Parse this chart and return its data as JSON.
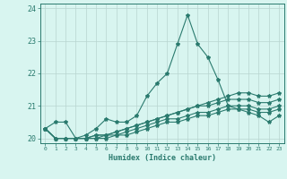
{
  "title": "",
  "xlabel": "Humidex (Indice chaleur)",
  "x": [
    0,
    1,
    2,
    3,
    4,
    5,
    6,
    7,
    8,
    9,
    10,
    11,
    12,
    13,
    14,
    15,
    16,
    17,
    18,
    19,
    20,
    21,
    22,
    23
  ],
  "lines": [
    [
      20.3,
      20.5,
      20.5,
      20.0,
      20.1,
      20.3,
      20.6,
      20.5,
      20.5,
      20.7,
      21.3,
      21.7,
      22.0,
      22.9,
      23.8,
      22.9,
      22.5,
      21.8,
      21.0,
      20.9,
      20.8,
      20.7,
      20.5,
      20.7
    ],
    [
      20.3,
      20.0,
      20.0,
      20.0,
      20.0,
      20.1,
      20.1,
      20.2,
      20.3,
      20.4,
      20.5,
      20.6,
      20.7,
      20.8,
      20.9,
      21.0,
      21.1,
      21.2,
      21.3,
      21.4,
      21.4,
      21.3,
      21.3,
      21.4
    ],
    [
      20.3,
      20.0,
      20.0,
      20.0,
      20.0,
      20.1,
      20.1,
      20.2,
      20.3,
      20.4,
      20.5,
      20.6,
      20.7,
      20.8,
      20.9,
      21.0,
      21.0,
      21.1,
      21.2,
      21.2,
      21.2,
      21.1,
      21.1,
      21.2
    ],
    [
      20.3,
      20.0,
      20.0,
      20.0,
      20.0,
      20.0,
      20.1,
      20.1,
      20.2,
      20.3,
      20.4,
      20.5,
      20.6,
      20.6,
      20.7,
      20.8,
      20.8,
      20.9,
      21.0,
      21.0,
      21.0,
      20.9,
      20.9,
      21.0
    ],
    [
      20.3,
      20.0,
      20.0,
      20.0,
      20.0,
      20.0,
      20.0,
      20.1,
      20.1,
      20.2,
      20.3,
      20.4,
      20.5,
      20.5,
      20.6,
      20.7,
      20.7,
      20.8,
      20.9,
      20.9,
      20.9,
      20.8,
      20.8,
      20.9
    ]
  ],
  "line_color": "#2a7a6e",
  "background_color": "#d8f5f0",
  "grid_color": "#b8d4d0",
  "axis_color": "#2a7a6e",
  "ylim": [
    19.85,
    24.15
  ],
  "yticks": [
    20,
    21,
    22,
    23,
    24
  ],
  "xtick_labels": [
    "0",
    "1",
    "2",
    "3",
    "4",
    "5",
    "6",
    "7",
    "8",
    "9",
    "10",
    "11",
    "12",
    "13",
    "14",
    "15",
    "16",
    "17",
    "18",
    "19",
    "20",
    "21",
    "22",
    "23"
  ],
  "marker": "*",
  "markersize": 3,
  "linewidth": 0.8
}
